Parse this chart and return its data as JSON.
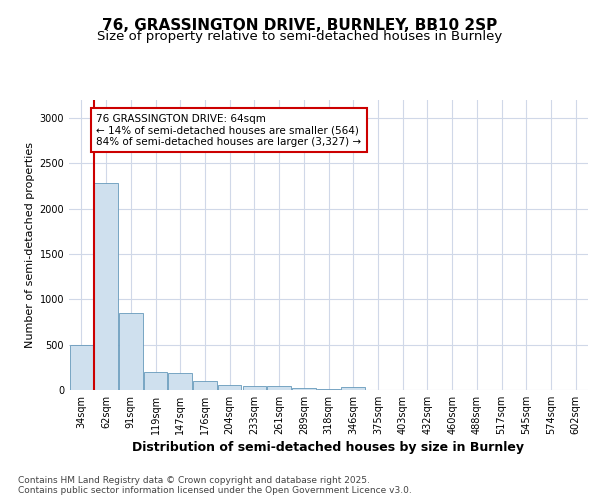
{
  "title1": "76, GRASSINGTON DRIVE, BURNLEY, BB10 2SP",
  "title2": "Size of property relative to semi-detached houses in Burnley",
  "xlabel": "Distribution of semi-detached houses by size in Burnley",
  "ylabel": "Number of semi-detached properties",
  "categories": [
    "34sqm",
    "62sqm",
    "91sqm",
    "119sqm",
    "147sqm",
    "176sqm",
    "204sqm",
    "233sqm",
    "261sqm",
    "289sqm",
    "318sqm",
    "346sqm",
    "375sqm",
    "403sqm",
    "432sqm",
    "460sqm",
    "488sqm",
    "517sqm",
    "545sqm",
    "574sqm",
    "602sqm"
  ],
  "values": [
    500,
    2280,
    850,
    200,
    190,
    95,
    60,
    45,
    40,
    22,
    15,
    30,
    0,
    0,
    0,
    0,
    0,
    0,
    0,
    0,
    0
  ],
  "bar_color": "#cfe0ee",
  "bar_edge_color": "#6699bb",
  "vline_x": 0.5,
  "vline_color": "#cc0000",
  "annotation_text": "76 GRASSINGTON DRIVE: 64sqm\n← 14% of semi-detached houses are smaller (564)\n84% of semi-detached houses are larger (3,327) →",
  "annotation_box_facecolor": "#ffffff",
  "annotation_box_edgecolor": "#cc0000",
  "ylim": [
    0,
    3200
  ],
  "yticks": [
    0,
    500,
    1000,
    1500,
    2000,
    2500,
    3000
  ],
  "bg_color": "#ffffff",
  "plot_bg_color": "#ffffff",
  "grid_color": "#d0d8e8",
  "title1_fontsize": 11,
  "title2_fontsize": 9.5,
  "ylabel_fontsize": 8,
  "xlabel_fontsize": 9,
  "tick_fontsize": 7,
  "annot_fontsize": 7.5,
  "footnote": "Contains HM Land Registry data © Crown copyright and database right 2025.\nContains public sector information licensed under the Open Government Licence v3.0.",
  "footnote_fontsize": 6.5
}
